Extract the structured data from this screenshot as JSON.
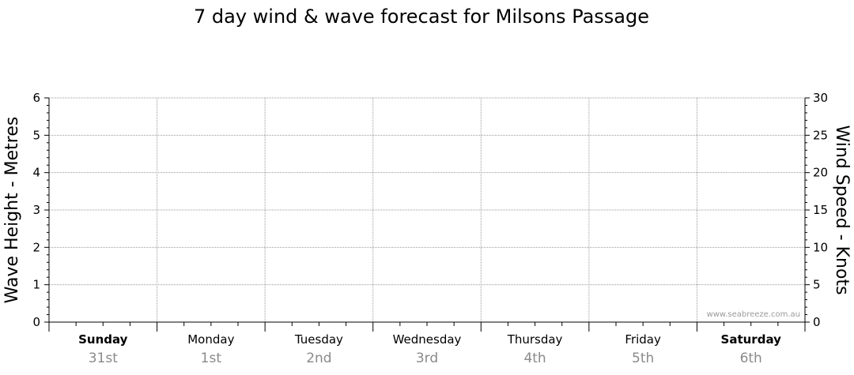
{
  "chart_data": {
    "type": "line",
    "title": "7 day wind & wave forecast for Milsons Passage",
    "ylabel_left": "Wave Height - Metres",
    "ylabel_right": "Wind Speed - Knots",
    "ylim_left": [
      0,
      6
    ],
    "ylim_right": [
      0,
      30
    ],
    "yticks_left": [
      "0",
      "1",
      "2",
      "3",
      "4",
      "5",
      "6"
    ],
    "yticks_right": [
      "0",
      "5",
      "10",
      "15",
      "20",
      "25",
      "30"
    ],
    "grid": true,
    "days": [
      {
        "day": "Sunday",
        "date": "31st",
        "bold": true
      },
      {
        "day": "Monday",
        "date": "1st",
        "bold": false
      },
      {
        "day": "Tuesday",
        "date": "2nd",
        "bold": false
      },
      {
        "day": "Wednesday",
        "date": "3rd",
        "bold": false
      },
      {
        "day": "Thursday",
        "date": "4th",
        "bold": false
      },
      {
        "day": "Friday",
        "date": "5th",
        "bold": false
      },
      {
        "day": "Saturday",
        "date": "6th",
        "bold": true
      }
    ],
    "series": []
  },
  "watermark": "www.seabreeze.com.au"
}
